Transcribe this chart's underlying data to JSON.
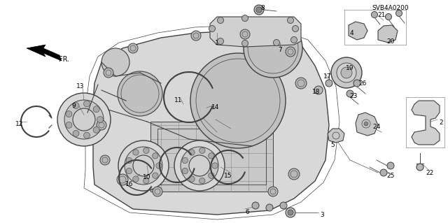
{
  "background_color": "#ffffff",
  "diagram_code": "SVB4A0200",
  "fig_width": 6.4,
  "fig_height": 3.19,
  "dpi": 100,
  "line_color": "#404040",
  "label_fontsize": 6.5,
  "code_fontsize": 6.5
}
